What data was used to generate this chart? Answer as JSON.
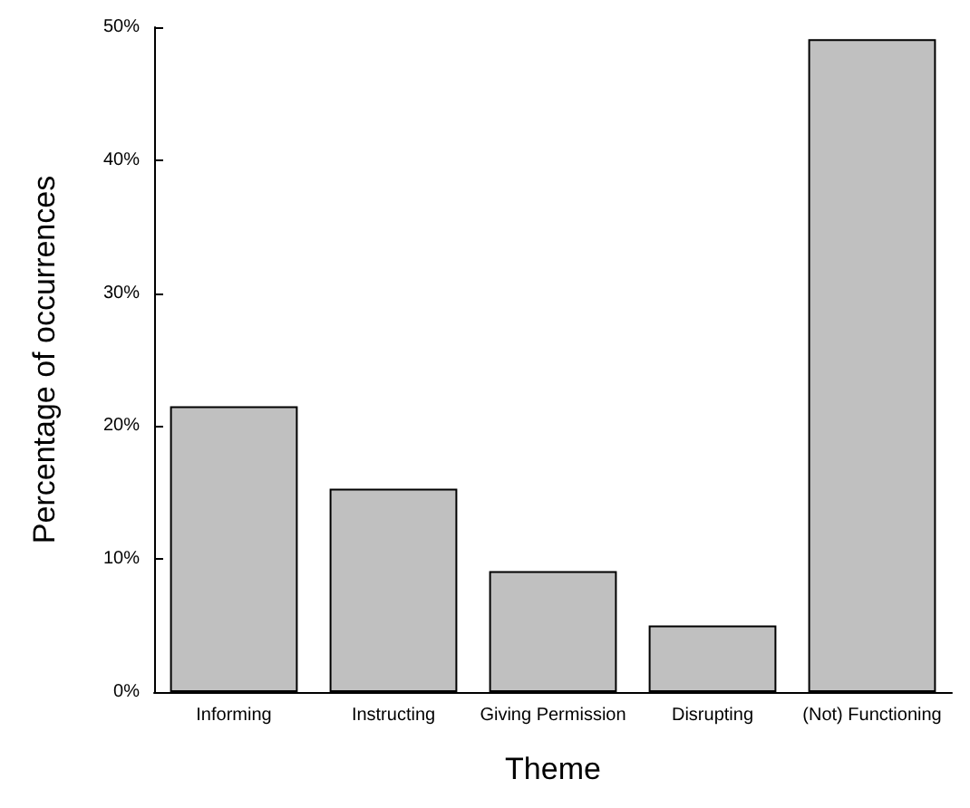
{
  "chart_data": {
    "type": "bar",
    "xlabel": "Theme",
    "ylabel": "Percentage of occurrences",
    "categories": [
      "Informing",
      "Instructing",
      "Giving Permission",
      "Disrupting",
      "(Not) Functioning"
    ],
    "values": [
      21.5,
      15.3,
      9.1,
      5.0,
      49.1
    ],
    "color": "#c0c0c0",
    "ylim": [
      0,
      50
    ],
    "yticks": [
      {
        "value": 0,
        "label": "0%"
      },
      {
        "value": 10,
        "label": "10%"
      },
      {
        "value": 20,
        "label": "20%"
      },
      {
        "value": 30,
        "label": "30%"
      },
      {
        "value": 40,
        "label": "40%"
      },
      {
        "value": 50,
        "label": "50%"
      }
    ],
    "grid": false
  }
}
